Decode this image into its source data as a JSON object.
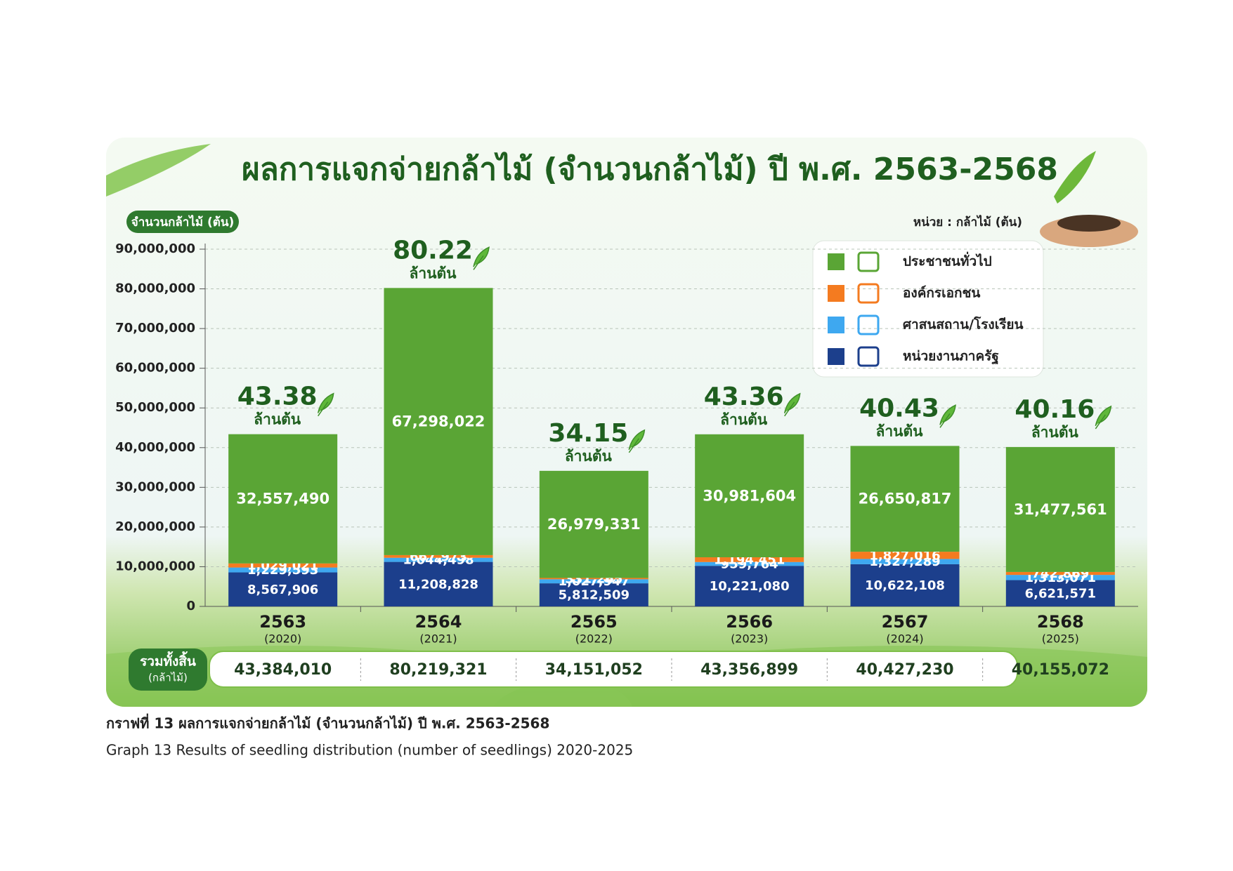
{
  "chart_data": {
    "type": "stacked-bar",
    "title": "ผลการแจกจ่ายกล้าไม้ (จำนวนกล้าไม้) ปี พ.ศ. 2563-2568",
    "y_label": "จำนวนกล้าไม้ (ต้น)",
    "unit_note": "หน่วย : กล้าไม้ (ต้น)",
    "categories": [
      "2563",
      "2564",
      "2565",
      "2566",
      "2567",
      "2568"
    ],
    "category_sublabels": [
      "(2020)",
      "(2021)",
      "(2022)",
      "(2023)",
      "(2024)",
      "(2025)"
    ],
    "series": [
      {
        "name": "หน่วยงานภาครัฐ",
        "color": "#1c3f8c",
        "values": [
          8567906,
          11208828,
          5812509,
          10221080,
          10622108,
          6621571
        ],
        "value_labels": [
          "8,567,906",
          "11,208,828",
          "5,812,509",
          "10,221,080",
          "10,622,108",
          "6,621,571"
        ]
      },
      {
        "name": "ศาสนสถาน/โรงเรียน",
        "color": "#3ea8f0",
        "values": [
          1229593,
          1044498,
          1027947,
          959764,
          1327289,
          1313071
        ],
        "value_labels": [
          "1,229,593",
          "1,044,498",
          "1,027,947",
          "959,764",
          "1,327,289",
          "1,313,071"
        ]
      },
      {
        "name": "องค์กรเอกชน",
        "color": "#f47b20",
        "values": [
          1029021,
          667973,
          331265,
          1194451,
          1827016,
          742869
        ],
        "value_labels": [
          "1,029,021",
          "667,973",
          "331,265",
          "1,194,451",
          "1,827,016",
          "742,869"
        ]
      },
      {
        "name": "ประชาชนทั่วไป",
        "color": "#5aa535",
        "values": [
          32557490,
          67298022,
          26979331,
          30981604,
          26650817,
          31477561
        ],
        "value_labels": [
          "32,557,490",
          "67,298,022",
          "26,979,331",
          "30,981,604",
          "26,650,817",
          "31,477,561"
        ]
      }
    ],
    "total_millions": [
      43.38,
      80.22,
      34.15,
      43.36,
      40.43,
      40.16
    ],
    "total_unit": "ล้านต้น",
    "totals": {
      "title": "รวมทั้งสิ้น",
      "subtitle": "(กล้าไม้)",
      "values": [
        43384010,
        80219321,
        34151052,
        43356899,
        40427230,
        40155072
      ],
      "value_labels": [
        "43,384,010",
        "80,219,321",
        "34,151,052",
        "43,356,899",
        "40,427,230",
        "40,155,072"
      ]
    },
    "ylim": [
      0,
      90000000
    ],
    "yticks": [
      0,
      {
        "value": 10000000,
        "label": "10,000,000"
      },
      {
        "value": 20000000,
        "label": "20,000,000"
      },
      {
        "value": 30000000,
        "label": "30,000,000"
      },
      {
        "value": 40000000,
        "label": "40,000,000"
      },
      {
        "value": 50000000,
        "label": "50,000,000"
      },
      {
        "value": 60000000,
        "label": "60,000,000"
      },
      {
        "value": 70000000,
        "label": "70,000,000"
      },
      {
        "value": 80000000,
        "label": "80,000,000"
      },
      {
        "value": 90000000,
        "label": "90,000,000"
      }
    ],
    "grid": true,
    "legend_position": "upper right"
  },
  "caption": {
    "thai": "กราฟที่ 13  ผลการแจกจ่ายกล้าไม้ (จำนวนกล้าไม้) ปี พ.ศ. 2563-2568",
    "english": "Graph 13 Results of seedling distribution (number of seedlings) 2020-2025"
  }
}
